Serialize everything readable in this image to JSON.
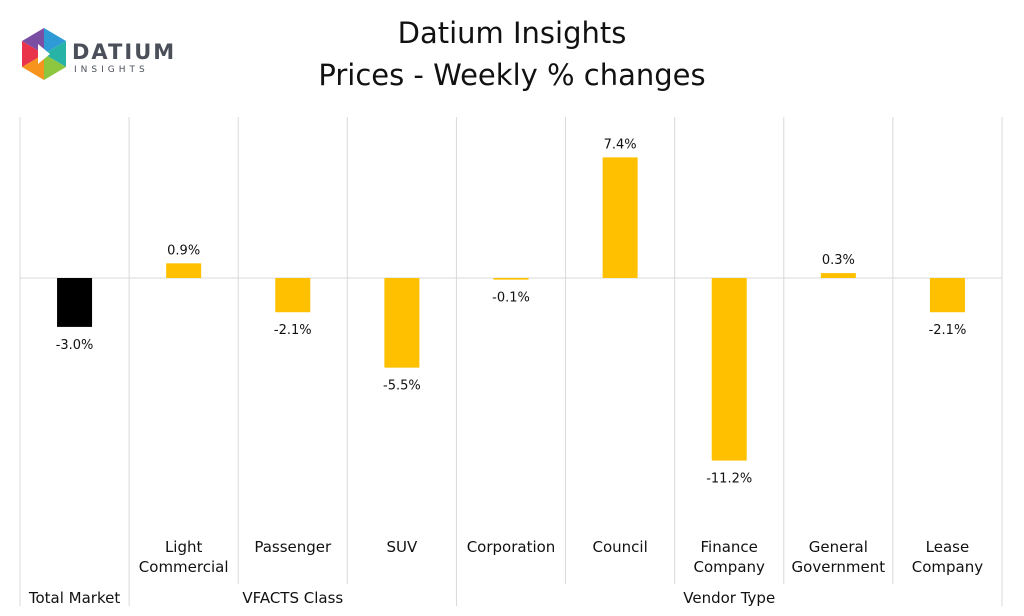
{
  "logo": {
    "word": "DATIUM",
    "sub": "INSIGHTS"
  },
  "header": {
    "title": "Datium Insights",
    "subtitle": "Prices - Weekly % changes"
  },
  "colors": {
    "highlight": "#000000",
    "bar": "#FFC000",
    "grid": "#d9d9d9"
  },
  "chart_data": {
    "type": "bar",
    "title": "Datium Insights",
    "subtitle": "Prices - Weekly % changes",
    "xlabel": "",
    "ylabel": "",
    "ylim": [
      -12.5,
      9.0
    ],
    "grid": false,
    "legend": "none",
    "categories": [
      {
        "label": [
          "Total Market"
        ],
        "value": -3.0,
        "value_label": "-3.0%",
        "color": "#000000",
        "group": 0
      },
      {
        "label": [
          "Light",
          "Commercial"
        ],
        "value": 0.9,
        "value_label": "0.9%",
        "color": "#FFC000",
        "group": 1
      },
      {
        "label": [
          "Passenger"
        ],
        "value": -2.1,
        "value_label": "-2.1%",
        "color": "#FFC000",
        "group": 1
      },
      {
        "label": [
          "SUV"
        ],
        "value": -5.5,
        "value_label": "-5.5%",
        "color": "#FFC000",
        "group": 1
      },
      {
        "label": [
          "Corporation"
        ],
        "value": -0.1,
        "value_label": "-0.1%",
        "color": "#FFC000",
        "group": 2
      },
      {
        "label": [
          "Council"
        ],
        "value": 7.4,
        "value_label": "7.4%",
        "color": "#FFC000",
        "group": 2
      },
      {
        "label": [
          "Finance",
          "Company"
        ],
        "value": -11.2,
        "value_label": "-11.2%",
        "color": "#FFC000",
        "group": 2
      },
      {
        "label": [
          "General",
          "Government"
        ],
        "value": 0.3,
        "value_label": "0.3%",
        "color": "#FFC000",
        "group": 2
      },
      {
        "label": [
          "Lease",
          "Company"
        ],
        "value": -2.1,
        "value_label": "-2.1%",
        "color": "#FFC000",
        "group": 2
      }
    ],
    "groups": [
      "",
      "VFACTS Class",
      "Vendor Type"
    ]
  }
}
